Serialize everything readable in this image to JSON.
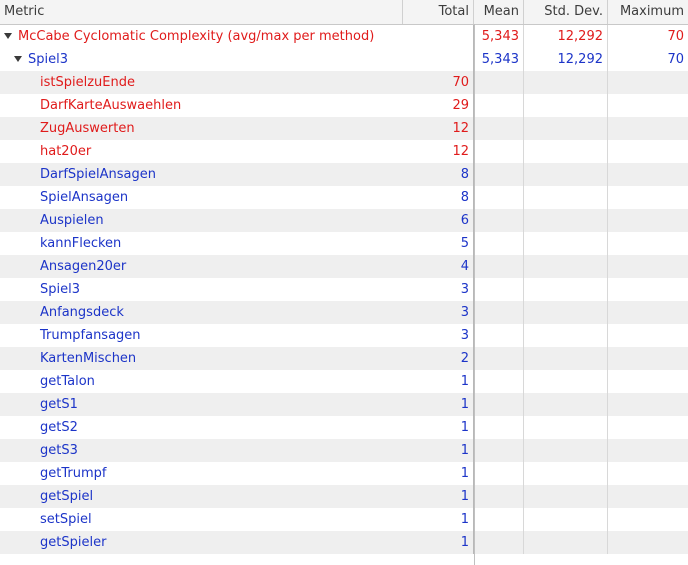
{
  "columns": {
    "metric": "Metric",
    "total": "Total",
    "mean": "Mean",
    "std": "Std. Dev.",
    "max": "Maximum"
  },
  "root": {
    "label": "McCabe Cyclomatic Complexity (avg/max per method)",
    "total": "",
    "mean": "5,343",
    "std": "12,292",
    "max": "70",
    "color": "#e01b1b"
  },
  "group": {
    "label": "Spiel3",
    "total": "",
    "mean": "5,343",
    "std": "12,292",
    "max": "70",
    "color": "#1c34c8"
  },
  "methods": [
    {
      "label": "istSpielzuEnde",
      "total": "70",
      "status": "red"
    },
    {
      "label": "DarfKarteAuswaehlen",
      "total": "29",
      "status": "red"
    },
    {
      "label": "ZugAuswerten",
      "total": "12",
      "status": "red"
    },
    {
      "label": "hat20er",
      "total": "12",
      "status": "red"
    },
    {
      "label": "DarfSpielAnsagen",
      "total": "8",
      "status": "blue"
    },
    {
      "label": "SpielAnsagen",
      "total": "8",
      "status": "blue"
    },
    {
      "label": "Auspielen",
      "total": "6",
      "status": "blue"
    },
    {
      "label": "kannFlecken",
      "total": "5",
      "status": "blue"
    },
    {
      "label": "Ansagen20er",
      "total": "4",
      "status": "blue"
    },
    {
      "label": "Spiel3",
      "total": "3",
      "status": "blue"
    },
    {
      "label": "Anfangsdeck",
      "total": "3",
      "status": "blue"
    },
    {
      "label": "Trumpfansagen",
      "total": "3",
      "status": "blue"
    },
    {
      "label": "KartenMischen",
      "total": "2",
      "status": "blue"
    },
    {
      "label": "getTalon",
      "total": "1",
      "status": "blue"
    },
    {
      "label": "getS1",
      "total": "1",
      "status": "blue"
    },
    {
      "label": "getS2",
      "total": "1",
      "status": "blue"
    },
    {
      "label": "getS3",
      "total": "1",
      "status": "blue"
    },
    {
      "label": "getTrumpf",
      "total": "1",
      "status": "blue"
    },
    {
      "label": "getSpiel",
      "total": "1",
      "status": "blue"
    },
    {
      "label": "setSpiel",
      "total": "1",
      "status": "blue"
    },
    {
      "label": "getSpieler",
      "total": "1",
      "status": "blue"
    }
  ]
}
